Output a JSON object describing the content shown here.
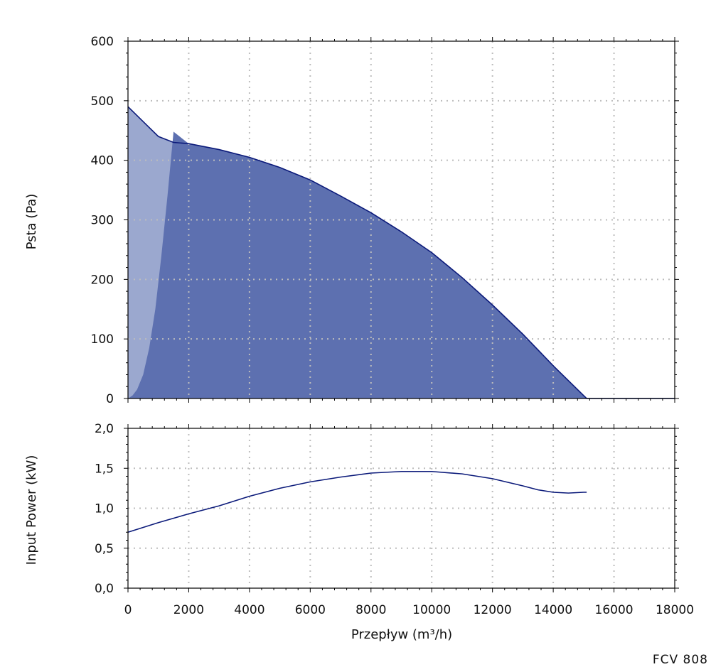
{
  "product_label": "FCV 808",
  "colors": {
    "region_light": "#9ba8cf",
    "region_dark": "#5d70b0",
    "curve": "#0b1a7a",
    "grid": "#bdbdbd",
    "axis": "#000000"
  },
  "chart_data": [
    {
      "id": "pressure",
      "type": "area",
      "title": "",
      "xlabel": "",
      "ylabel": "Psta (Pa)",
      "xlim": [
        0,
        18000
      ],
      "ylim": [
        0,
        600
      ],
      "x_ticks": [
        0,
        2000,
        4000,
        6000,
        8000,
        10000,
        12000,
        14000,
        16000,
        18000
      ],
      "y_ticks": [
        0,
        100,
        200,
        300,
        400,
        500,
        600
      ],
      "y_tick_labels": [
        "0",
        "100",
        "200",
        "300",
        "400",
        "500",
        "600"
      ],
      "grid": true,
      "series": [
        {
          "role": "curve",
          "x": [
            0,
            500,
            1000,
            1500,
            2000,
            3000,
            4000,
            5000,
            6000,
            7000,
            8000,
            9000,
            10000,
            11000,
            12000,
            13000,
            14000,
            15000,
            15100
          ],
          "y": [
            490,
            465,
            440,
            430,
            428,
            418,
            405,
            388,
            367,
            340,
            312,
            280,
            245,
            203,
            157,
            108,
            55,
            5,
            0
          ]
        },
        {
          "role": "stall-region-boundary",
          "x": [
            0,
            150,
            300,
            500,
            700,
            900,
            1100,
            1300,
            1500
          ],
          "y": [
            0,
            5,
            15,
            40,
            85,
            150,
            240,
            340,
            448
          ]
        }
      ]
    },
    {
      "id": "power",
      "type": "line",
      "title": "",
      "xlabel": "Przepływ (m³/h)",
      "ylabel": "Input Power (kW)",
      "xlim": [
        0,
        18000
      ],
      "ylim": [
        0,
        2
      ],
      "x_ticks": [
        0,
        2000,
        4000,
        6000,
        8000,
        10000,
        12000,
        14000,
        16000,
        18000
      ],
      "x_tick_labels": [
        "0",
        "2000",
        "4000",
        "6000",
        "8000",
        "10000",
        "12000",
        "14000",
        "16000",
        "18000"
      ],
      "y_ticks": [
        0,
        0.5,
        1,
        1.5,
        2
      ],
      "y_tick_labels": [
        "0,0",
        "0,5",
        "1,0",
        "1,5",
        "2,0"
      ],
      "grid": true,
      "series": [
        {
          "role": "curve",
          "x": [
            0,
            1000,
            2000,
            3000,
            4000,
            5000,
            6000,
            7000,
            8000,
            9000,
            10000,
            11000,
            12000,
            13000,
            13500,
            14000,
            14500,
            15000,
            15100
          ],
          "y": [
            0.7,
            0.82,
            0.93,
            1.03,
            1.15,
            1.25,
            1.33,
            1.39,
            1.44,
            1.46,
            1.46,
            1.43,
            1.37,
            1.28,
            1.23,
            1.2,
            1.19,
            1.2,
            1.2
          ]
        }
      ]
    }
  ]
}
